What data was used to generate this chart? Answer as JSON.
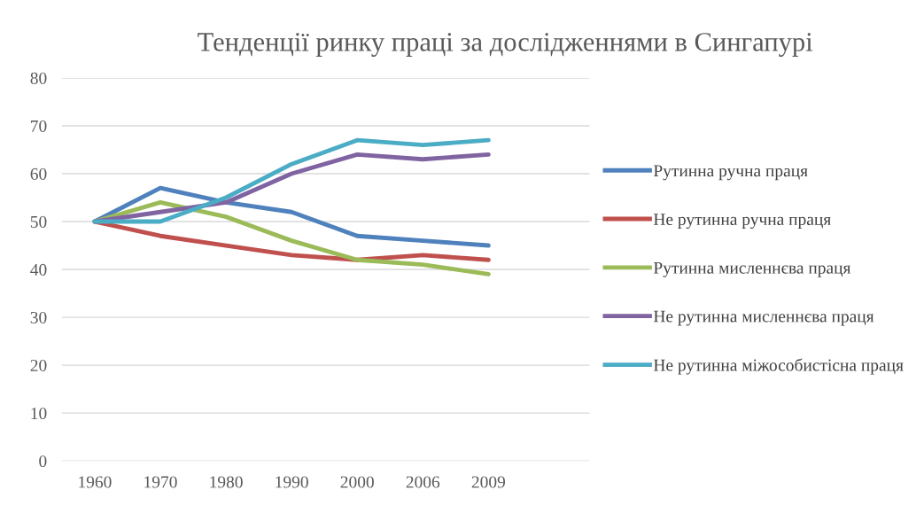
{
  "chart_data": {
    "type": "line",
    "title": "Тенденції ринку праці за дослідженнями в Сингапурі",
    "categories": [
      "1960",
      "1970",
      "1980",
      "1990",
      "2000",
      "2006",
      "2009"
    ],
    "series": [
      {
        "name": "Рутинна ручна праця",
        "color": "#4f81bd",
        "values": [
          50,
          57,
          54,
          52,
          47,
          46,
          45
        ]
      },
      {
        "name": "Не рутинна ручна праця",
        "color": "#c0504d",
        "values": [
          50,
          47,
          45,
          43,
          42,
          43,
          42
        ]
      },
      {
        "name": "Рутинна мисленнєва праця",
        "color": "#9bbb59",
        "values": [
          50,
          54,
          51,
          46,
          42,
          41,
          39
        ]
      },
      {
        "name": "Не рутинна мисленнєва праця",
        "color": "#8064a2",
        "values": [
          50,
          52,
          54,
          60,
          64,
          63,
          64
        ]
      },
      {
        "name": "Не рутинна міжособистісна праця",
        "color": "#4bacc6",
        "values": [
          50,
          50,
          55,
          62,
          67,
          66,
          67
        ]
      }
    ],
    "ylim": [
      0,
      80
    ],
    "yticks": [
      0,
      10,
      20,
      30,
      40,
      50,
      60,
      70,
      80
    ],
    "grid": "y",
    "legend": "right",
    "marker": "none",
    "line_style": "solid"
  }
}
